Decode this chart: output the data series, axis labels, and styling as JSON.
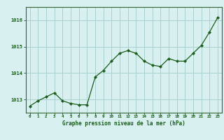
{
  "x": [
    0,
    1,
    2,
    3,
    4,
    5,
    6,
    7,
    8,
    9,
    10,
    11,
    12,
    13,
    14,
    15,
    16,
    17,
    18,
    19,
    20,
    21,
    22,
    23
  ],
  "y": [
    1012.75,
    1012.95,
    1013.1,
    1013.25,
    1012.95,
    1012.85,
    1012.8,
    1012.8,
    1013.85,
    1014.1,
    1014.45,
    1014.75,
    1014.85,
    1014.75,
    1014.45,
    1014.3,
    1014.25,
    1014.55,
    1014.45,
    1014.45,
    1014.75,
    1015.05,
    1015.55,
    1016.1
  ],
  "ylim": [
    1012.5,
    1016.5
  ],
  "yticks": [
    1013,
    1014,
    1015,
    1016
  ],
  "xticks": [
    0,
    1,
    2,
    3,
    4,
    5,
    6,
    7,
    8,
    9,
    10,
    11,
    12,
    13,
    14,
    15,
    16,
    17,
    18,
    19,
    20,
    21,
    22,
    23
  ],
  "line_color": "#1a5c1a",
  "marker_color": "#1a5c1a",
  "bg_color": "#d8f0f0",
  "grid_color": "#aad0d0",
  "xlabel": "Graphe pression niveau de la mer (hPa)",
  "xlabel_color": "#1a5c1a",
  "tick_color": "#1a5c1a",
  "axis_color": "#336633"
}
